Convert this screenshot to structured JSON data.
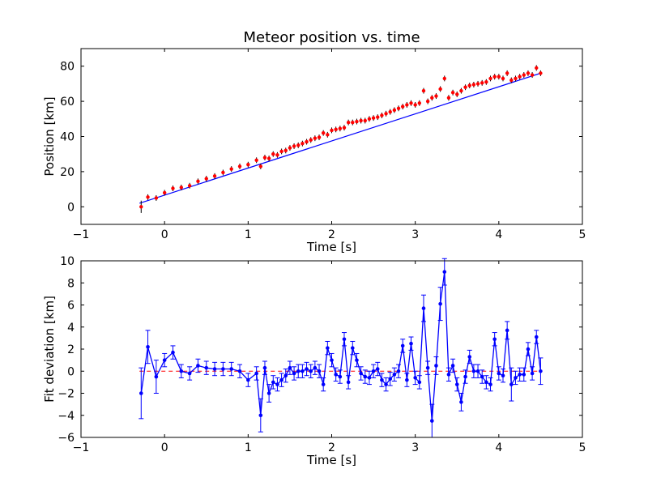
{
  "chart_data": [
    {
      "type": "scatter",
      "title": "Meteor position vs. time",
      "xlabel": "Time [s]",
      "ylabel": "Position [km]",
      "xlim": [
        -1,
        5
      ],
      "ylim": [
        -10,
        90
      ],
      "xticks": [
        "−1",
        "0",
        "1",
        "2",
        "3",
        "4",
        "5"
      ],
      "yticks": [
        "0",
        "20",
        "40",
        "60",
        "80"
      ],
      "grid": false,
      "colors": {
        "data": "#ff0000",
        "fit": "#0000ff",
        "errorbar": "#000000"
      },
      "points": {
        "x": [
          -0.28,
          -0.2,
          -0.1,
          0.0,
          0.1,
          0.2,
          0.3,
          0.4,
          0.5,
          0.6,
          0.7,
          0.8,
          0.9,
          1.0,
          1.1,
          1.15,
          1.2,
          1.25,
          1.3,
          1.35,
          1.4,
          1.45,
          1.5,
          1.55,
          1.6,
          1.65,
          1.7,
          1.75,
          1.8,
          1.85,
          1.9,
          1.95,
          2.0,
          2.05,
          2.1,
          2.15,
          2.2,
          2.25,
          2.3,
          2.35,
          2.4,
          2.45,
          2.5,
          2.55,
          2.6,
          2.65,
          2.7,
          2.75,
          2.8,
          2.85,
          2.9,
          2.95,
          3.0,
          3.05,
          3.1,
          3.15,
          3.2,
          3.25,
          3.3,
          3.35,
          3.4,
          3.45,
          3.5,
          3.55,
          3.6,
          3.65,
          3.7,
          3.75,
          3.8,
          3.85,
          3.9,
          3.95,
          4.0,
          4.05,
          4.1,
          4.15,
          4.2,
          4.25,
          4.3,
          4.35,
          4.4,
          4.45,
          4.5
        ],
        "y": [
          0,
          5.5,
          5,
          8,
          10.5,
          11,
          12,
          14.5,
          16,
          17.5,
          19.5,
          21.5,
          23,
          24,
          26.5,
          23,
          28,
          27.5,
          30,
          29.5,
          31.5,
          32,
          33.5,
          34.5,
          35,
          36,
          37,
          38,
          39,
          39.5,
          42,
          41,
          43.5,
          44,
          44.5,
          45,
          48,
          48,
          48.5,
          49,
          49,
          50,
          50.5,
          51,
          52,
          53,
          54,
          55,
          56,
          57,
          58,
          59,
          58,
          59,
          66,
          60,
          62,
          63,
          67,
          73,
          62,
          65,
          64,
          66,
          68,
          69,
          69.5,
          70,
          70.5,
          71,
          73,
          74,
          74,
          73,
          76,
          72,
          73,
          74,
          75,
          76,
          75,
          79,
          76
        ]
      },
      "fit": {
        "x": [
          -0.3,
          4.5
        ],
        "y": [
          2,
          76
        ]
      }
    },
    {
      "type": "line",
      "xlabel": "Time [s]",
      "ylabel": "Fit deviation [km]",
      "xlim": [
        -1,
        5
      ],
      "ylim": [
        -6,
        10
      ],
      "xticks": [
        "−1",
        "0",
        "1",
        "2",
        "3",
        "4",
        "5"
      ],
      "yticks": [
        "−6",
        "−4",
        "−2",
        "0",
        "2",
        "4",
        "6",
        "8",
        "10"
      ],
      "grid": false,
      "colors": {
        "series": "#0000ff",
        "zero_line": "#ff0000"
      },
      "series": {
        "x": [
          -0.28,
          -0.2,
          -0.1,
          0.0,
          0.1,
          0.2,
          0.3,
          0.4,
          0.5,
          0.6,
          0.7,
          0.8,
          0.9,
          1.0,
          1.1,
          1.15,
          1.2,
          1.25,
          1.3,
          1.35,
          1.4,
          1.45,
          1.5,
          1.55,
          1.6,
          1.65,
          1.7,
          1.75,
          1.8,
          1.85,
          1.9,
          1.95,
          2.0,
          2.05,
          2.1,
          2.15,
          2.2,
          2.25,
          2.3,
          2.35,
          2.4,
          2.45,
          2.5,
          2.55,
          2.6,
          2.65,
          2.7,
          2.75,
          2.8,
          2.85,
          2.9,
          2.95,
          3.0,
          3.05,
          3.1,
          3.15,
          3.2,
          3.25,
          3.3,
          3.35,
          3.4,
          3.45,
          3.5,
          3.55,
          3.6,
          3.65,
          3.7,
          3.75,
          3.8,
          3.85,
          3.9,
          3.95,
          4.0,
          4.05,
          4.1,
          4.15,
          4.2,
          4.25,
          4.3,
          4.35,
          4.4,
          4.45,
          4.5
        ],
        "y": [
          -2.0,
          2.2,
          -0.5,
          1.0,
          1.7,
          0.0,
          -0.2,
          0.5,
          0.3,
          0.2,
          0.2,
          0.2,
          0.0,
          -0.8,
          -0.2,
          -4.0,
          0.3,
          -2.0,
          -1.0,
          -1.2,
          -0.8,
          -0.4,
          0.3,
          -0.2,
          0.0,
          0.0,
          0.2,
          0.0,
          0.3,
          0.0,
          -1.2,
          2.1,
          1.0,
          -0.3,
          -0.5,
          2.9,
          -1.0,
          2.1,
          1.0,
          -0.2,
          -0.5,
          -0.6,
          0.0,
          0.2,
          -0.8,
          -1.2,
          -0.7,
          -0.3,
          0.0,
          2.3,
          -0.8,
          2.5,
          -0.6,
          -1.0,
          5.7,
          0.3,
          -4.5,
          0.5,
          6.1,
          9.0,
          -0.3,
          0.5,
          -1.2,
          -2.8,
          -0.5,
          1.3,
          0.0,
          0.0,
          -0.5,
          -1.0,
          -1.2,
          2.9,
          -0.2,
          -0.4,
          3.7,
          -1.2,
          -0.6,
          -0.3,
          -0.3,
          2.0,
          -0.2,
          3.1,
          0.0
        ],
        "err": [
          2.3,
          1.5,
          1.5,
          0.6,
          0.6,
          0.6,
          0.6,
          0.6,
          0.6,
          0.6,
          0.6,
          0.6,
          0.6,
          0.6,
          0.6,
          1.5,
          0.6,
          0.8,
          0.6,
          0.6,
          0.6,
          0.6,
          0.6,
          0.6,
          0.6,
          0.6,
          0.6,
          0.6,
          0.6,
          0.6,
          0.6,
          0.6,
          0.6,
          0.6,
          0.6,
          0.6,
          0.6,
          0.6,
          0.6,
          0.6,
          0.6,
          0.6,
          0.6,
          0.6,
          0.6,
          0.6,
          0.6,
          0.6,
          0.6,
          0.6,
          0.6,
          0.6,
          0.6,
          0.6,
          1.2,
          0.6,
          1.5,
          0.8,
          1.5,
          1.2,
          0.6,
          0.6,
          0.6,
          0.8,
          0.6,
          0.6,
          0.6,
          0.6,
          0.6,
          0.6,
          0.6,
          0.6,
          0.6,
          0.6,
          0.8,
          1.5,
          0.6,
          0.6,
          0.6,
          0.6,
          0.6,
          0.6,
          1.2
        ]
      },
      "zero_line": 0
    }
  ]
}
